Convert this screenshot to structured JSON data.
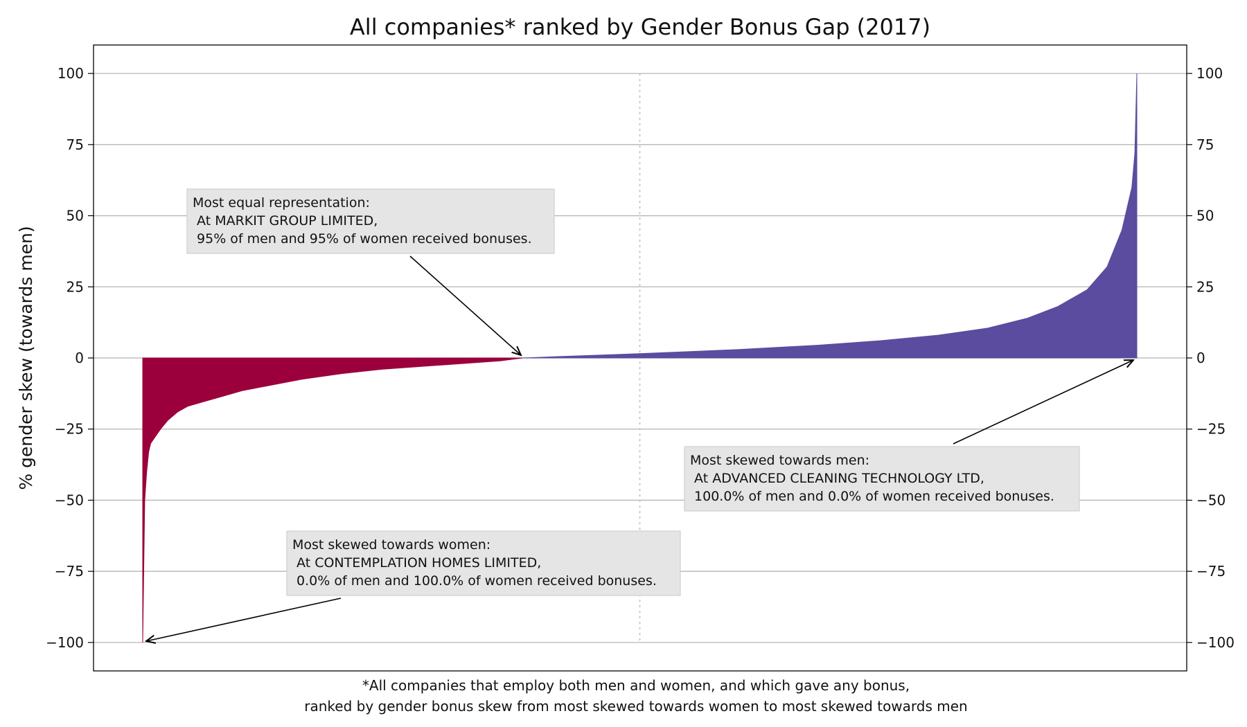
{
  "chart_data": {
    "type": "bar",
    "title": "All companies* ranked by Gender Bonus Gap (2017)",
    "ylabel": "% gender skew (towards men)",
    "xlabel": "",
    "caption": [
      "*All companies that employ both men and women, and which gave any bonus,",
      "ranked by gender bonus skew from most skewed towards women to most skewed towards men"
    ],
    "ylim": [
      -110,
      110
    ],
    "yticks": [
      100,
      75,
      50,
      25,
      0,
      -25,
      -50,
      -75,
      -100
    ],
    "ytick_labels": [
      "100",
      "75",
      "50",
      "25",
      "0",
      "−25",
      "−50",
      "−75",
      "−100"
    ],
    "grid": "horizontal",
    "colors": {
      "women": "#9b003c",
      "men": "#5b4c9f",
      "neutral": "#c8c8c8"
    },
    "series": [
      {
        "name": "skewed towards women",
        "rank_range": [
          0,
          0.382
        ],
        "ranked_values": [
          [
            0.0,
            -100
          ],
          [
            0.002,
            -50
          ],
          [
            0.004,
            -40
          ],
          [
            0.006,
            -33
          ],
          [
            0.008,
            -30
          ],
          [
            0.012,
            -28
          ],
          [
            0.018,
            -25
          ],
          [
            0.025,
            -22
          ],
          [
            0.035,
            -19
          ],
          [
            0.045,
            -17
          ],
          [
            0.06,
            -15.5
          ],
          [
            0.08,
            -13.5
          ],
          [
            0.1,
            -11.5
          ],
          [
            0.13,
            -9.5
          ],
          [
            0.16,
            -7.5
          ],
          [
            0.2,
            -5.5
          ],
          [
            0.24,
            -4
          ],
          [
            0.28,
            -3
          ],
          [
            0.32,
            -2
          ],
          [
            0.36,
            -1
          ],
          [
            0.382,
            0
          ]
        ]
      },
      {
        "name": "skewed towards men",
        "rank_range": [
          0.382,
          1.0
        ],
        "ranked_values": [
          [
            0.382,
            0
          ],
          [
            0.42,
            0.5
          ],
          [
            0.5,
            1.5
          ],
          [
            0.6,
            3
          ],
          [
            0.68,
            4.5
          ],
          [
            0.74,
            6
          ],
          [
            0.8,
            8
          ],
          [
            0.85,
            10.5
          ],
          [
            0.89,
            14
          ],
          [
            0.92,
            18
          ],
          [
            0.95,
            24
          ],
          [
            0.97,
            32
          ],
          [
            0.985,
            45
          ],
          [
            0.995,
            60
          ],
          [
            0.998,
            72
          ],
          [
            1.0,
            100
          ]
        ]
      }
    ],
    "median_marker": {
      "rank": 0.5
    },
    "annotations": [
      {
        "name": "most-equal",
        "lines": [
          "Most equal representation:",
          " At MARKIT GROUP LIMITED,",
          " 95% of men and 95% of women received bonuses."
        ],
        "target": {
          "rank": 0.381,
          "value": 0
        }
      },
      {
        "name": "most-men",
        "lines": [
          "Most skewed towards men:",
          " At ADVANCED CLEANING TECHNOLOGY LTD,",
          " 100.0% of men and 0.0% of women received bonuses."
        ],
        "target": {
          "rank": 0.996,
          "value": 0
        }
      },
      {
        "name": "most-women",
        "lines": [
          "Most skewed towards women:",
          " At CONTEMPLATION HOMES LIMITED,",
          " 0.0% of men and 100.0% of women received bonuses."
        ],
        "target": {
          "rank": 0.004,
          "value": -100
        }
      }
    ]
  }
}
